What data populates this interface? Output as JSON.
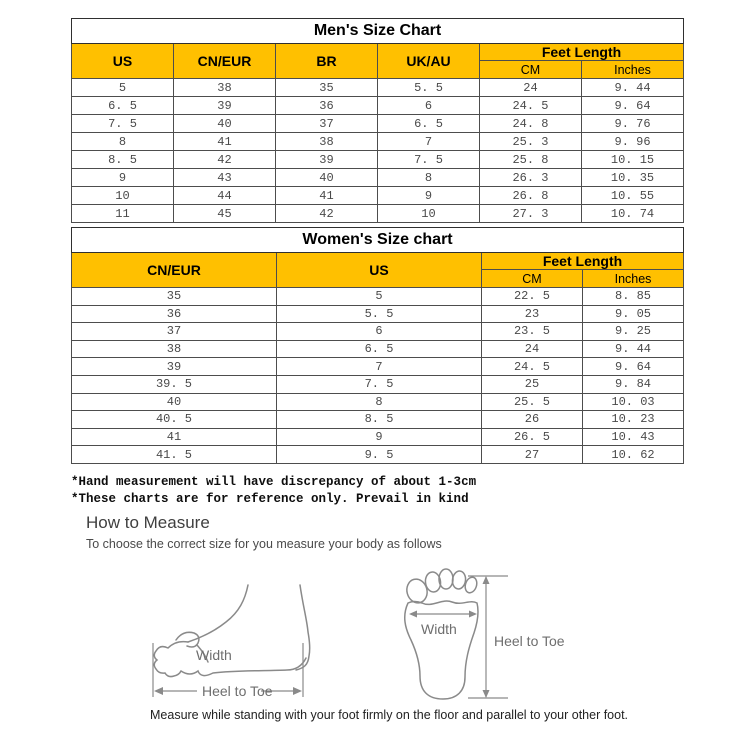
{
  "colors": {
    "header_bg": "#FFC000",
    "table_border": "#4d4d4d",
    "data_text": "#4a4a4a",
    "diagram_stroke": "#8a8a8a"
  },
  "mens_table": {
    "title": "Men's Size Chart",
    "columns": [
      "US",
      "CN/EUR",
      "BR",
      "UK/AU"
    ],
    "feet_length_label": "Feet Length",
    "feet_sub": [
      "CM",
      "Inches"
    ],
    "rows": [
      [
        "5",
        "38",
        "35",
        "5. 5",
        "24",
        "9. 44"
      ],
      [
        "6. 5",
        "39",
        "36",
        "6",
        "24. 5",
        "9. 64"
      ],
      [
        "7. 5",
        "40",
        "37",
        "6. 5",
        "24. 8",
        "9. 76"
      ],
      [
        "8",
        "41",
        "38",
        "7",
        "25. 3",
        "9. 96"
      ],
      [
        "8. 5",
        "42",
        "39",
        "7. 5",
        "25. 8",
        "10. 15"
      ],
      [
        "9",
        "43",
        "40",
        "8",
        "26. 3",
        "10. 35"
      ],
      [
        "10",
        "44",
        "41",
        "9",
        "26. 8",
        "10. 55"
      ],
      [
        "11",
        "45",
        "42",
        "10",
        "27. 3",
        "10. 74"
      ]
    ]
  },
  "womens_table": {
    "title": "Women's Size chart",
    "columns": [
      "CN/EUR",
      "US"
    ],
    "feet_length_label": "Feet Length",
    "feet_sub": [
      "CM",
      "Inches"
    ],
    "rows": [
      [
        "35",
        "5",
        "22. 5",
        "8. 85"
      ],
      [
        "36",
        "5. 5",
        "23",
        "9. 05"
      ],
      [
        "37",
        "6",
        "23. 5",
        "9. 25"
      ],
      [
        "38",
        "6. 5",
        "24",
        "9. 44"
      ],
      [
        "39",
        "7",
        "24. 5",
        "9. 64"
      ],
      [
        "39. 5",
        "7. 5",
        "25",
        "9. 84"
      ],
      [
        "40",
        "8",
        "25. 5",
        "10. 03"
      ],
      [
        "40. 5",
        "8. 5",
        "26",
        "10. 23"
      ],
      [
        "41",
        "9",
        "26. 5",
        "10. 43"
      ],
      [
        "41. 5",
        "9. 5",
        "27",
        "10. 62"
      ]
    ]
  },
  "notes": {
    "line1": "*Hand measurement will have discrepancy of about 1-3cm",
    "line2": "*These charts are for reference only. Prevail in kind"
  },
  "how_to_measure": {
    "title": "How to Measure",
    "subtitle": "To choose the correct size for you measure your body as follows",
    "caption": "Measure while standing with your foot firmly on the floor and parallel to your other foot."
  },
  "diagrams": {
    "side_view": {
      "width_label": "Width",
      "length_label": "Heel to Toe"
    },
    "top_view": {
      "width_label": "Width",
      "length_label": "Heel to Toe"
    }
  }
}
